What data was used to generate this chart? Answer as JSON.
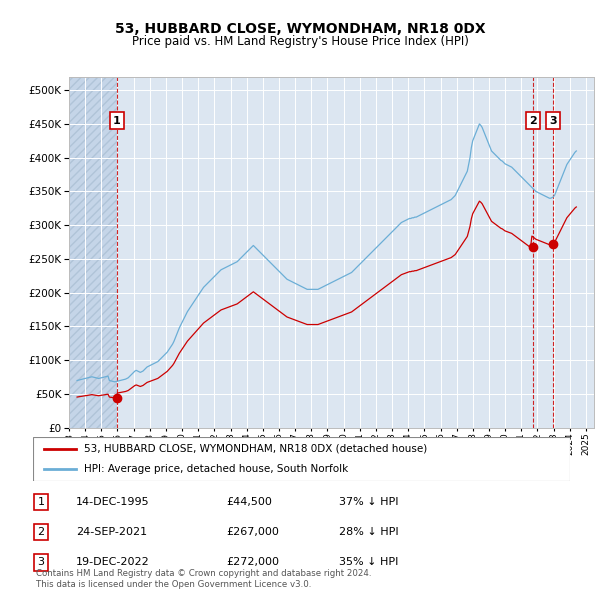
{
  "title": "53, HUBBARD CLOSE, WYMONDHAM, NR18 0DX",
  "subtitle": "Price paid vs. HM Land Registry's House Price Index (HPI)",
  "hpi_line_color": "#6baed6",
  "price_line_color": "#cc0000",
  "background_plot": "#dce6f1",
  "background_hatch": "#c5d5e8",
  "transactions": [
    {
      "label": "1",
      "date": "14-DEC-1995",
      "price": 44500,
      "note": "37% ↓ HPI",
      "x_year": 1995.96
    },
    {
      "label": "2",
      "date": "24-SEP-2021",
      "price": 267000,
      "note": "28% ↓ HPI",
      "x_year": 2021.73
    },
    {
      "label": "3",
      "date": "19-DEC-2022",
      "price": 272000,
      "note": "35% ↓ HPI",
      "x_year": 2022.96
    }
  ],
  "legend_label_red": "53, HUBBARD CLOSE, WYMONDHAM, NR18 0DX (detached house)",
  "legend_label_blue": "HPI: Average price, detached house, South Norfolk",
  "footer": "Contains HM Land Registry data © Crown copyright and database right 2024.\nThis data is licensed under the Open Government Licence v3.0.",
  "ylim": [
    0,
    520000
  ],
  "yticks": [
    0,
    50000,
    100000,
    150000,
    200000,
    250000,
    300000,
    350000,
    400000,
    450000,
    500000
  ],
  "xlim": [
    1993.0,
    2025.5
  ],
  "hpi_monthly": {
    "start_year": 1993.5,
    "step": 0.0833,
    "values": [
      70000,
      70500,
      71000,
      71500,
      72000,
      72500,
      73000,
      73500,
      74000,
      74500,
      75000,
      75500,
      75000,
      74500,
      74000,
      73500,
      73000,
      73500,
      74000,
      74500,
      75000,
      75500,
      76000,
      76500,
      70000,
      69500,
      69000,
      68500,
      68000,
      68500,
      69000,
      69500,
      70000,
      70500,
      71000,
      71500,
      72000,
      73000,
      74000,
      76000,
      78000,
      80000,
      82000,
      84000,
      85000,
      84000,
      83000,
      82000,
      83000,
      84000,
      86000,
      88000,
      90000,
      91000,
      92000,
      93000,
      94000,
      95000,
      96000,
      97000,
      98000,
      100000,
      102000,
      104000,
      106000,
      108000,
      110000,
      112000,
      115000,
      118000,
      121000,
      124000,
      128000,
      133000,
      138000,
      143000,
      148000,
      152000,
      156000,
      160000,
      164000,
      168000,
      172000,
      175000,
      178000,
      181000,
      184000,
      187000,
      190000,
      193000,
      196000,
      199000,
      202000,
      205000,
      208000,
      210000,
      212000,
      214000,
      216000,
      218000,
      220000,
      222000,
      224000,
      226000,
      228000,
      230000,
      232000,
      234000,
      235000,
      236000,
      237000,
      238000,
      239000,
      240000,
      241000,
      242000,
      243000,
      244000,
      245000,
      246000,
      248000,
      250000,
      252000,
      254000,
      256000,
      258000,
      260000,
      262000,
      264000,
      266000,
      268000,
      270000,
      268000,
      266000,
      264000,
      262000,
      260000,
      258000,
      256000,
      254000,
      252000,
      250000,
      248000,
      246000,
      244000,
      242000,
      240000,
      238000,
      236000,
      234000,
      232000,
      230000,
      228000,
      226000,
      224000,
      222000,
      220000,
      219000,
      218000,
      217000,
      216000,
      215000,
      214000,
      213000,
      212000,
      211000,
      210000,
      209000,
      208000,
      207000,
      206000,
      205000,
      205000,
      205000,
      205000,
      205000,
      205000,
      205000,
      205000,
      205000,
      206000,
      207000,
      208000,
      209000,
      210000,
      211000,
      212000,
      213000,
      214000,
      215000,
      216000,
      217000,
      218000,
      219000,
      220000,
      221000,
      222000,
      223000,
      224000,
      225000,
      226000,
      227000,
      228000,
      229000,
      230000,
      232000,
      234000,
      236000,
      238000,
      240000,
      242000,
      244000,
      246000,
      248000,
      250000,
      252000,
      254000,
      256000,
      258000,
      260000,
      262000,
      264000,
      266000,
      268000,
      270000,
      272000,
      274000,
      276000,
      278000,
      280000,
      282000,
      284000,
      286000,
      288000,
      290000,
      292000,
      294000,
      296000,
      298000,
      300000,
      302000,
      304000,
      305000,
      306000,
      307000,
      308000,
      309000,
      310000,
      310000,
      311000,
      311000,
      312000,
      312000,
      313000,
      314000,
      315000,
      316000,
      317000,
      318000,
      319000,
      320000,
      321000,
      322000,
      323000,
      324000,
      325000,
      326000,
      327000,
      328000,
      329000,
      330000,
      331000,
      332000,
      333000,
      334000,
      335000,
      336000,
      337000,
      338000,
      340000,
      342000,
      344000,
      348000,
      352000,
      356000,
      360000,
      364000,
      368000,
      372000,
      376000,
      380000,
      390000,
      400000,
      415000,
      425000,
      430000,
      435000,
      440000,
      445000,
      450000,
      448000,
      445000,
      440000,
      435000,
      430000,
      425000,
      420000,
      415000,
      410000,
      408000,
      406000,
      404000,
      402000,
      400000,
      398000,
      396000,
      395000,
      393000,
      391000,
      390000,
      389000,
      388000,
      387000,
      386000,
      384000,
      382000,
      380000,
      378000,
      376000,
      374000,
      372000,
      370000,
      368000,
      366000,
      364000,
      362000,
      360000,
      358000,
      356000,
      354000,
      352000,
      350000,
      349000,
      348000,
      347000,
      346000,
      345000,
      344000,
      343000,
      342000,
      341000,
      340000,
      340000,
      341000,
      342000,
      345000,
      350000,
      355000,
      360000,
      365000,
      370000,
      375000,
      380000,
      385000,
      390000,
      393000,
      396000,
      399000,
      402000,
      405000,
      408000,
      410000
    ]
  },
  "price_monthly": {
    "start_year": 1993.5,
    "step": 0.0833,
    "t1_idx": 29,
    "t2_idx": 337,
    "t3_idx": 353,
    "scale1": 44500,
    "scale2": 267000,
    "scale3": 272000
  }
}
